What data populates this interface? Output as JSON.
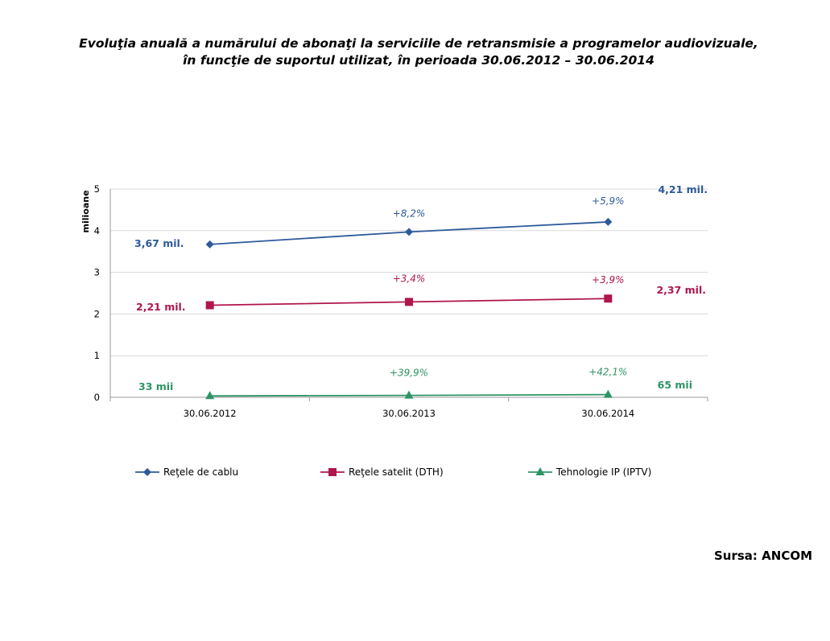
{
  "chart_data": {
    "type": "line",
    "title_line1": "Evoluţia anuală a numărului de abonaţi la serviciile de retransmisie a programelor audiovizuale,",
    "title_line2": "în funcţie de suportul utilizat, în perioada 30.06.2012 – 30.06.2014",
    "ylabel": "milioane",
    "ylim": [
      0,
      5
    ],
    "yticks": [
      "0",
      "1",
      "2",
      "3",
      "4",
      "5"
    ],
    "categories": [
      "30.06.2012",
      "30.06.2013",
      "30.06.2014"
    ],
    "grid": true,
    "legend_position": "bottom",
    "series": [
      {
        "name": "Reţele de cablu",
        "values": [
          3.67,
          3.97,
          4.21
        ],
        "color": "#2E5A9A",
        "marker": "diamond",
        "growth_labels": [
          "+8,2%",
          "+5,9%"
        ],
        "start_label": "3,67 mil.",
        "end_label": "4,21 mil."
      },
      {
        "name": "Reţele satelit (DTH)",
        "values": [
          2.21,
          2.29,
          2.37
        ],
        "color": "#B0154E",
        "marker": "square",
        "growth_labels": [
          "+3,4%",
          "+3,9%"
        ],
        "start_label": "2,21 mil.",
        "end_label": "2,37 mil."
      },
      {
        "name": "Tehnologie IP (IPTV)",
        "values": [
          0.033,
          0.046,
          0.065
        ],
        "color": "#2E9464",
        "marker": "triangle",
        "growth_labels": [
          "+39,9%",
          "+42,1%"
        ],
        "start_label": "33 mii",
        "end_label": "65 mii"
      }
    ]
  },
  "source": "Sursa: ANCOM"
}
